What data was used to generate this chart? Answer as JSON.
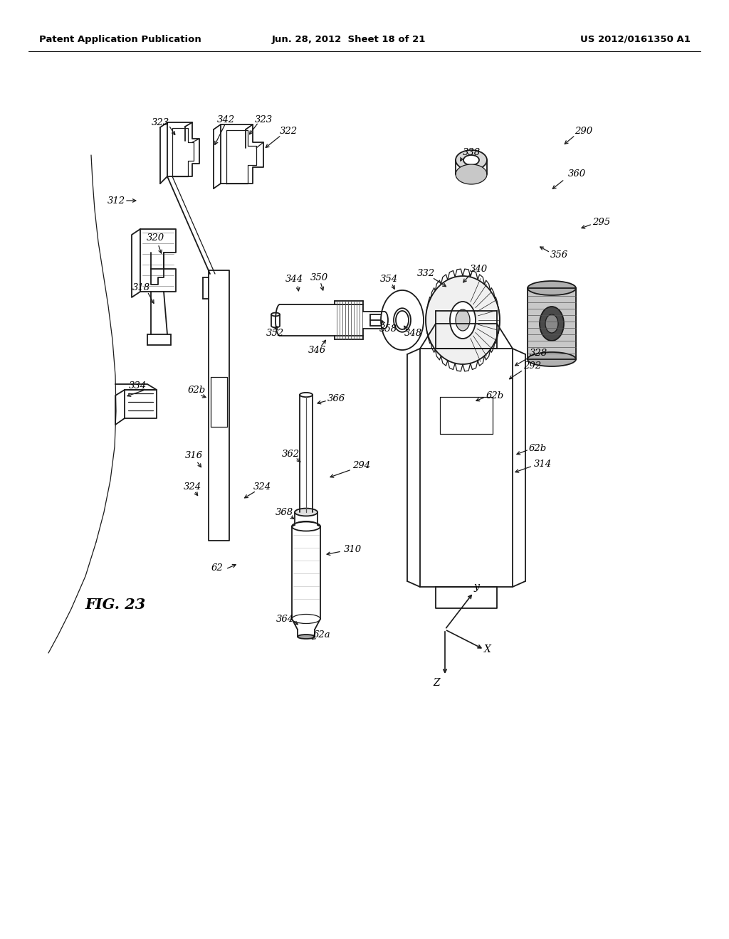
{
  "header_left": "Patent Application Publication",
  "header_center": "Jun. 28, 2012  Sheet 18 of 21",
  "header_right": "US 2012/0161350 A1",
  "figure_label": "FIG. 23",
  "bg_color": "#ffffff",
  "line_color": "#1a1a1a",
  "label_fs": 9.5
}
